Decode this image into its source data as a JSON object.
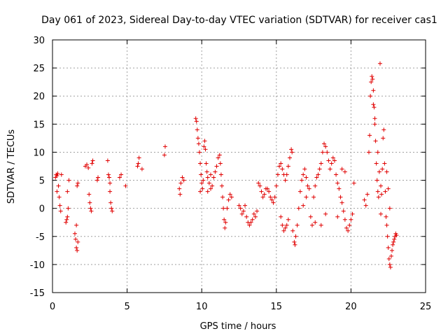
{
  "chart_data": {
    "type": "scatter",
    "title": "Day 061 of 2023, Sidereal Day-to-day VTEC variation (SDTVAR) for receiver cas1",
    "xlabel": "GPS time / hours",
    "ylabel": "SDTVAR / TECUs",
    "xlim": [
      0,
      25
    ],
    "ylim": [
      -15,
      30
    ],
    "xticks": [
      0,
      5,
      10,
      15,
      20,
      25
    ],
    "yticks": [
      -15,
      -10,
      -5,
      0,
      5,
      10,
      15,
      20,
      25,
      30
    ],
    "grid": true,
    "marker": "+",
    "color": "#e00000",
    "series": [
      {
        "name": "SDTVAR",
        "points": [
          [
            0.2,
            5.5
          ],
          [
            0.25,
            6.0
          ],
          [
            0.3,
            5.8
          ],
          [
            0.35,
            6.2
          ],
          [
            0.4,
            4.0
          ],
          [
            0.45,
            2.0
          ],
          [
            0.5,
            0.5
          ],
          [
            0.55,
            -0.5
          ],
          [
            0.6,
            6.0
          ],
          [
            0.3,
            3.0
          ],
          [
            0.9,
            -2.5
          ],
          [
            0.95,
            -2.0
          ],
          [
            1.0,
            -1.5
          ],
          [
            1.05,
            0.0
          ],
          [
            1.1,
            5.0
          ],
          [
            1.0,
            3.0
          ],
          [
            1.5,
            -4.5
          ],
          [
            1.55,
            -5.5
          ],
          [
            1.6,
            -7.0
          ],
          [
            1.65,
            -7.5
          ],
          [
            1.7,
            -6.0
          ],
          [
            1.6,
            -3.0
          ],
          [
            1.65,
            4.0
          ],
          [
            1.7,
            4.5
          ],
          [
            2.2,
            7.5
          ],
          [
            2.3,
            7.8
          ],
          [
            2.4,
            7.2
          ],
          [
            2.45,
            2.5
          ],
          [
            2.5,
            1.0
          ],
          [
            2.55,
            0.0
          ],
          [
            2.6,
            -0.5
          ],
          [
            2.65,
            8.0
          ],
          [
            2.7,
            8.5
          ],
          [
            3.0,
            5.0
          ],
          [
            3.05,
            5.5
          ],
          [
            3.7,
            8.5
          ],
          [
            3.75,
            6.0
          ],
          [
            3.8,
            5.5
          ],
          [
            3.85,
            3.0
          ],
          [
            3.9,
            1.0
          ],
          [
            3.95,
            0.0
          ],
          [
            4.0,
            -0.5
          ],
          [
            3.85,
            4.5
          ],
          [
            4.5,
            5.5
          ],
          [
            4.6,
            6.0
          ],
          [
            4.9,
            4.0
          ],
          [
            5.7,
            7.5
          ],
          [
            5.75,
            8.0
          ],
          [
            5.8,
            9.0
          ],
          [
            6.0,
            7.0
          ],
          [
            7.5,
            9.5
          ],
          [
            7.55,
            11.0
          ],
          [
            8.5,
            3.5
          ],
          [
            8.55,
            2.5
          ],
          [
            8.6,
            4.5
          ],
          [
            8.7,
            5.5
          ],
          [
            8.8,
            5.0
          ],
          [
            9.6,
            16.0
          ],
          [
            9.65,
            15.5
          ],
          [
            9.7,
            14.0
          ],
          [
            9.75,
            12.5
          ],
          [
            9.8,
            11.5
          ],
          [
            9.85,
            10.0
          ],
          [
            9.9,
            8.0
          ],
          [
            9.95,
            6.0
          ],
          [
            10.0,
            4.5
          ],
          [
            10.05,
            3.5
          ],
          [
            10.1,
            5.0
          ],
          [
            10.15,
            11.0
          ],
          [
            10.2,
            12.0
          ],
          [
            10.25,
            10.5
          ],
          [
            10.3,
            8.0
          ],
          [
            10.35,
            6.5
          ],
          [
            10.4,
            5.5
          ],
          [
            10.5,
            4.5
          ],
          [
            10.6,
            3.5
          ],
          [
            10.7,
            4.0
          ],
          [
            10.8,
            5.5
          ],
          [
            10.9,
            6.5
          ],
          [
            11.0,
            7.5
          ],
          [
            11.1,
            9.0
          ],
          [
            11.2,
            9.5
          ],
          [
            11.25,
            8.0
          ],
          [
            11.3,
            6.0
          ],
          [
            11.35,
            4.0
          ],
          [
            11.4,
            2.0
          ],
          [
            11.45,
            0.0
          ],
          [
            11.5,
            -2.0
          ],
          [
            11.55,
            -3.5
          ],
          [
            11.6,
            -2.5
          ],
          [
            11.7,
            0.0
          ],
          [
            11.8,
            1.5
          ],
          [
            11.9,
            2.5
          ],
          [
            12.0,
            2.0
          ],
          [
            9.9,
            3.0
          ],
          [
            10.4,
            3.0
          ],
          [
            10.6,
            6.0
          ],
          [
            12.5,
            0.5
          ],
          [
            12.6,
            0.0
          ],
          [
            12.7,
            -1.0
          ],
          [
            12.8,
            -0.5
          ],
          [
            12.9,
            0.5
          ],
          [
            13.0,
            -1.5
          ],
          [
            13.1,
            -2.5
          ],
          [
            13.2,
            -3.0
          ],
          [
            13.3,
            -2.5
          ],
          [
            13.4,
            -2.0
          ],
          [
            13.5,
            -1.0
          ],
          [
            13.6,
            -1.5
          ],
          [
            13.7,
            -0.5
          ],
          [
            13.8,
            4.5
          ],
          [
            13.9,
            4.0
          ],
          [
            14.0,
            3.0
          ],
          [
            14.1,
            2.0
          ],
          [
            14.2,
            2.5
          ],
          [
            14.3,
            3.5
          ],
          [
            14.4,
            3.5
          ],
          [
            14.5,
            3.0
          ],
          [
            14.6,
            2.0
          ],
          [
            14.7,
            1.5
          ],
          [
            14.8,
            1.0
          ],
          [
            14.9,
            2.0
          ],
          [
            15.0,
            4.0
          ],
          [
            15.1,
            6.0
          ],
          [
            15.2,
            7.5
          ],
          [
            15.3,
            8.0
          ],
          [
            15.4,
            7.0
          ],
          [
            15.5,
            6.0
          ],
          [
            15.6,
            5.0
          ],
          [
            15.7,
            6.0
          ],
          [
            15.8,
            7.5
          ],
          [
            15.9,
            9.0
          ],
          [
            16.0,
            10.5
          ],
          [
            16.05,
            10.0
          ],
          [
            15.3,
            -1.5
          ],
          [
            15.4,
            -3.0
          ],
          [
            15.5,
            -4.0
          ],
          [
            15.6,
            -3.5
          ],
          [
            15.7,
            -3.0
          ],
          [
            15.8,
            -2.0
          ],
          [
            16.1,
            -4.0
          ],
          [
            16.2,
            -6.0
          ],
          [
            16.25,
            -6.5
          ],
          [
            16.3,
            -5.0
          ],
          [
            16.4,
            -3.0
          ],
          [
            16.5,
            0.0
          ],
          [
            16.6,
            3.0
          ],
          [
            16.7,
            5.0
          ],
          [
            16.8,
            6.0
          ],
          [
            16.9,
            7.0
          ],
          [
            17.0,
            5.5
          ],
          [
            17.1,
            4.0
          ],
          [
            17.2,
            3.5
          ],
          [
            17.3,
            -1.5
          ],
          [
            17.4,
            -3.0
          ],
          [
            17.5,
            2.0
          ],
          [
            17.6,
            4.0
          ],
          [
            17.7,
            5.5
          ],
          [
            17.8,
            6.0
          ],
          [
            17.9,
            7.0
          ],
          [
            18.0,
            8.0
          ],
          [
            18.1,
            10.0
          ],
          [
            18.2,
            11.5
          ],
          [
            18.3,
            11.0
          ],
          [
            18.4,
            10.0
          ],
          [
            18.5,
            8.5
          ],
          [
            18.6,
            7.0
          ],
          [
            18.7,
            8.0
          ],
          [
            18.8,
            9.0
          ],
          [
            18.9,
            8.5
          ],
          [
            19.0,
            6.0
          ],
          [
            19.1,
            4.5
          ],
          [
            19.2,
            3.5
          ],
          [
            19.3,
            2.0
          ],
          [
            19.4,
            1.0
          ],
          [
            19.5,
            -0.5
          ],
          [
            19.6,
            -2.0
          ],
          [
            19.7,
            -3.5
          ],
          [
            19.8,
            -4.0
          ],
          [
            19.9,
            -3.0
          ],
          [
            20.0,
            -2.0
          ],
          [
            20.1,
            -1.0
          ],
          [
            20.2,
            4.5
          ],
          [
            16.8,
            0.5
          ],
          [
            17.0,
            2.0
          ],
          [
            17.6,
            -2.5
          ],
          [
            18.0,
            -3.0
          ],
          [
            18.3,
            -1.0
          ],
          [
            19.1,
            -1.5
          ],
          [
            19.4,
            7.0
          ],
          [
            19.6,
            6.5
          ],
          [
            20.9,
            1.5
          ],
          [
            21.0,
            0.5
          ],
          [
            21.1,
            2.5
          ],
          [
            21.2,
            10.0
          ],
          [
            21.25,
            13.0
          ],
          [
            21.3,
            20.0
          ],
          [
            21.35,
            22.5
          ],
          [
            21.4,
            23.5
          ],
          [
            21.45,
            23.0
          ],
          [
            21.5,
            21.0
          ],
          [
            21.55,
            18.0
          ],
          [
            21.6,
            15.0
          ],
          [
            21.65,
            12.0
          ],
          [
            21.7,
            8.0
          ],
          [
            21.75,
            5.0
          ],
          [
            21.8,
            3.0
          ],
          [
            21.85,
            2.0
          ],
          [
            21.9,
            6.5
          ],
          [
            21.95,
            25.8
          ],
          [
            22.0,
            4.0
          ],
          [
            22.05,
            2.5
          ],
          [
            22.1,
            7.0
          ],
          [
            22.15,
            12.5
          ],
          [
            22.2,
            14.0
          ],
          [
            22.25,
            8.0
          ],
          [
            22.3,
            3.0
          ],
          [
            22.35,
            -1.5
          ],
          [
            22.4,
            -3.0
          ],
          [
            22.45,
            -5.0
          ],
          [
            22.5,
            -7.0
          ],
          [
            22.55,
            -9.0
          ],
          [
            22.6,
            -10.0
          ],
          [
            22.65,
            -10.5
          ],
          [
            22.7,
            -8.5
          ],
          [
            22.75,
            -7.5
          ],
          [
            22.8,
            -6.5
          ],
          [
            22.85,
            -6.0
          ],
          [
            22.9,
            -5.5
          ],
          [
            22.95,
            -5.0
          ],
          [
            23.0,
            -4.5
          ],
          [
            23.05,
            -4.8
          ],
          [
            22.4,
            6.5
          ],
          [
            22.5,
            3.5
          ],
          [
            22.6,
            0.0
          ],
          [
            21.5,
            18.5
          ],
          [
            21.6,
            16.0
          ],
          [
            21.8,
            10.0
          ],
          [
            22.0,
            -1.0
          ]
        ]
      }
    ]
  }
}
